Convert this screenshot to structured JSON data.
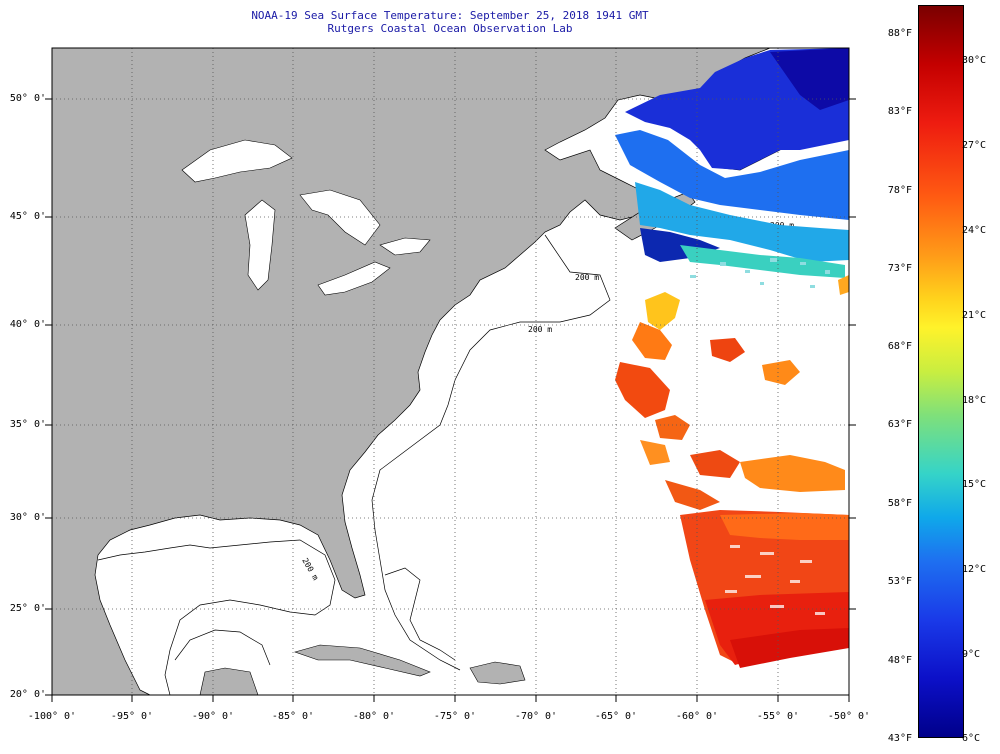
{
  "header": {
    "title_line1": "NOAA-19 Sea Surface Temperature:  September 25, 2018 1941 GMT",
    "title_line2": "Rutgers Coastal Ocean Observation Lab"
  },
  "map": {
    "lat_labels": [
      "50° 0'",
      "45° 0'",
      "40° 0'",
      "35° 0'",
      "30° 0'",
      "25° 0'",
      "20° 0'"
    ],
    "lon_labels": [
      "-100° 0'",
      "-95° 0'",
      "-90° 0'",
      "-85° 0'",
      "-80° 0'",
      "-75° 0'",
      "-70° 0'",
      "-65° 0'",
      "-60° 0'",
      "-55° 0'",
      "-50° 0'"
    ],
    "isobath_labels": [
      "200 m",
      "200 m",
      "200 m",
      "200 m"
    ],
    "colors": {
      "land": "#b2b2b2",
      "ocean_no_data": "#ffffff",
      "grid": "#555555"
    }
  },
  "colorbar": {
    "fahrenheit_labels": [
      "88°F",
      "83°F",
      "78°F",
      "73°F",
      "68°F",
      "63°F",
      "58°F",
      "53°F",
      "48°F",
      "43°F"
    ],
    "celsius_labels": [
      "30°C",
      "27°C",
      "24°C",
      "21°C",
      "18°C",
      "15°C",
      "12°C",
      "9°C",
      "6°C"
    ]
  }
}
